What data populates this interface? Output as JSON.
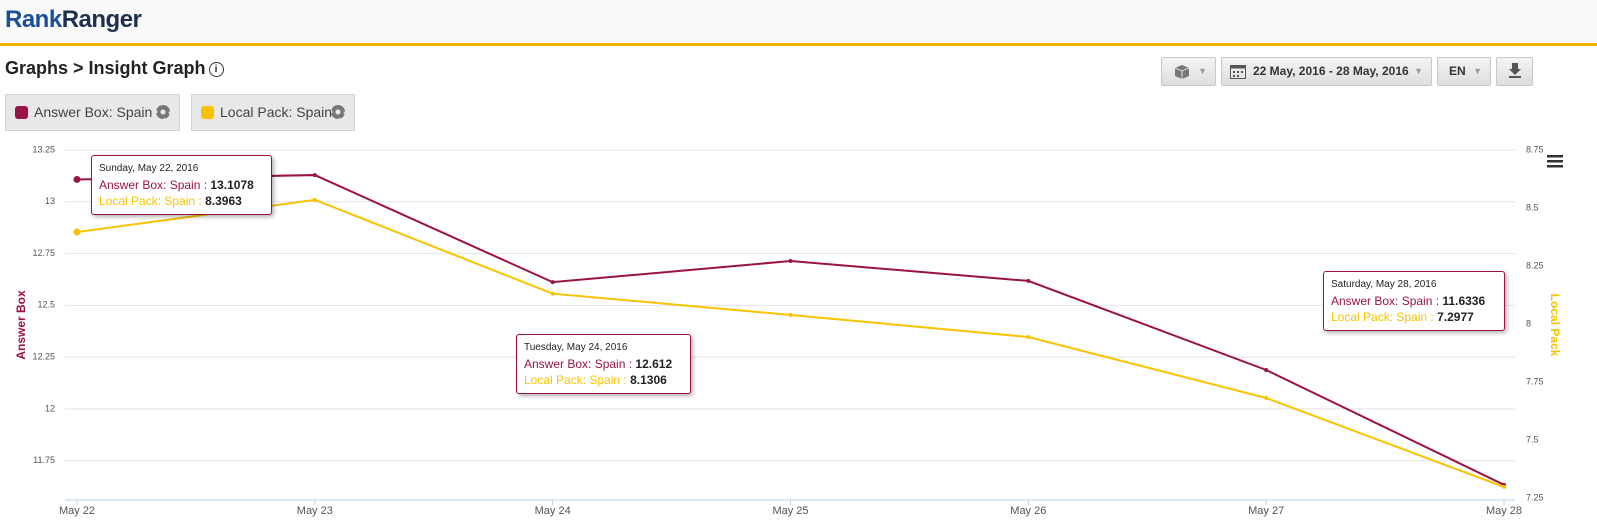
{
  "header": {
    "logo": [
      "Rank",
      "Ranger"
    ],
    "breadcrumb": "Graphs > Insight Graph",
    "date_range": "22 May, 2016 - 28 May, 2016",
    "language": "EN"
  },
  "chart_data": {
    "type": "line",
    "categories": [
      "May 22",
      "May 23",
      "May 24",
      "May 25",
      "May 26",
      "May 27",
      "May 28"
    ],
    "series": [
      {
        "name": "Answer Box: Spain",
        "color": "#9b1346",
        "values": [
          13.1078,
          13.129,
          12.612,
          12.714,
          12.618,
          12.188,
          11.6336
        ]
      },
      {
        "name": "Local Pack: Spain",
        "color": "#f9c300",
        "axis": "y2",
        "values": [
          8.3963,
          8.535,
          8.1306,
          8.039,
          7.944,
          7.681,
          7.2977
        ]
      }
    ],
    "ylabel": "Answer Box",
    "y2label": "Local Pack",
    "ylim": [
      11.57,
      13.25
    ],
    "yticks": [
      11.75,
      12,
      12.25,
      12.5,
      12.75,
      13,
      13.25
    ],
    "y2lim": [
      7.25,
      8.75
    ],
    "y2ticks": [
      7.25,
      7.5,
      7.75,
      8,
      8.25,
      8.5,
      8.75
    ],
    "grid": true,
    "tooltip_separator": ":",
    "tooltips": [
      "Sunday, May 22, 2016",
      "Tuesday, May 24, 2016",
      "Saturday, May 28, 2016"
    ]
  }
}
